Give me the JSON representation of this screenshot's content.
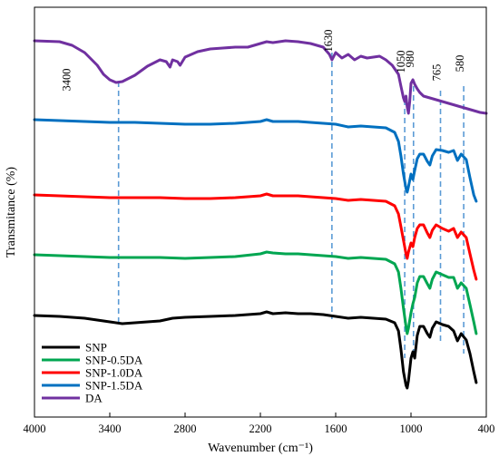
{
  "chart_data": {
    "type": "line",
    "title": "",
    "xlabel": "Wavenumber (cm⁻¹)",
    "ylabel": "Transmitance (%)",
    "xlim": [
      4000,
      400
    ],
    "x_reversed": true,
    "y_ticks_shown": false,
    "grid": false,
    "legend_position": "bottom-left",
    "x_ticks": [
      {
        "value": 4000,
        "label": "4000"
      },
      {
        "value": 3400,
        "label": "3400"
      },
      {
        "value": 2800,
        "label": "2800"
      },
      {
        "value": 2200,
        "label": "2200"
      },
      {
        "value": 1600,
        "label": "1600"
      },
      {
        "value": 1000,
        "label": "1000"
      },
      {
        "value": 400,
        "label": "400"
      }
    ],
    "annotations": [
      {
        "x": 3330,
        "label": "3400",
        "rotated": true
      },
      {
        "x": 1630,
        "label": "1630",
        "rotated": true
      },
      {
        "x": 1050,
        "label": "1050",
        "rotated": true
      },
      {
        "x": 980,
        "label": "980",
        "rotated": true
      },
      {
        "x": 765,
        "label": "765",
        "rotated": true
      },
      {
        "x": 580,
        "label": "580",
        "rotated": true
      }
    ],
    "annotation_color": "#5b9bd5",
    "series": [
      {
        "name": "SNP",
        "color": "#000000",
        "points": [
          [
            4000,
            348
          ],
          [
            3800,
            349
          ],
          [
            3600,
            351
          ],
          [
            3400,
            355
          ],
          [
            3300,
            357
          ],
          [
            3200,
            356
          ],
          [
            3000,
            354
          ],
          [
            2900,
            351
          ],
          [
            2800,
            350
          ],
          [
            2600,
            349
          ],
          [
            2400,
            348
          ],
          [
            2200,
            346
          ],
          [
            2150,
            344
          ],
          [
            2100,
            346
          ],
          [
            2000,
            345
          ],
          [
            1900,
            346
          ],
          [
            1800,
            346
          ],
          [
            1700,
            347
          ],
          [
            1600,
            349
          ],
          [
            1500,
            351
          ],
          [
            1400,
            350
          ],
          [
            1300,
            351
          ],
          [
            1200,
            352
          ],
          [
            1130,
            356
          ],
          [
            1100,
            365
          ],
          [
            1080,
            385
          ],
          [
            1060,
            410
          ],
          [
            1040,
            425
          ],
          [
            1030,
            428
          ],
          [
            1020,
            420
          ],
          [
            1000,
            395
          ],
          [
            985,
            388
          ],
          [
            970,
            395
          ],
          [
            950,
            370
          ],
          [
            930,
            360
          ],
          [
            900,
            360
          ],
          [
            870,
            368
          ],
          [
            850,
            372
          ],
          [
            830,
            362
          ],
          [
            800,
            355
          ],
          [
            750,
            358
          ],
          [
            700,
            360
          ],
          [
            660,
            365
          ],
          [
            630,
            376
          ],
          [
            600,
            368
          ],
          [
            560,
            375
          ],
          [
            530,
            390
          ],
          [
            500,
            410
          ],
          [
            480,
            422
          ]
        ]
      },
      {
        "name": "SNP-0.5DA",
        "color": "#00a651",
        "points": [
          [
            4000,
            281
          ],
          [
            3800,
            282
          ],
          [
            3600,
            283
          ],
          [
            3400,
            284
          ],
          [
            3200,
            284
          ],
          [
            3000,
            284
          ],
          [
            2800,
            285
          ],
          [
            2600,
            284
          ],
          [
            2400,
            283
          ],
          [
            2200,
            280
          ],
          [
            2150,
            278
          ],
          [
            2100,
            279
          ],
          [
            2000,
            280
          ],
          [
            1900,
            280
          ],
          [
            1800,
            281
          ],
          [
            1700,
            282
          ],
          [
            1600,
            283
          ],
          [
            1500,
            285
          ],
          [
            1400,
            284
          ],
          [
            1300,
            285
          ],
          [
            1200,
            286
          ],
          [
            1130,
            291
          ],
          [
            1100,
            300
          ],
          [
            1080,
            318
          ],
          [
            1060,
            340
          ],
          [
            1040,
            360
          ],
          [
            1030,
            368
          ],
          [
            1020,
            362
          ],
          [
            1000,
            345
          ],
          [
            985,
            335
          ],
          [
            970,
            328
          ],
          [
            950,
            312
          ],
          [
            930,
            305
          ],
          [
            900,
            305
          ],
          [
            870,
            313
          ],
          [
            850,
            318
          ],
          [
            830,
            308
          ],
          [
            800,
            300
          ],
          [
            750,
            303
          ],
          [
            700,
            306
          ],
          [
            660,
            306
          ],
          [
            630,
            318
          ],
          [
            600,
            312
          ],
          [
            560,
            318
          ],
          [
            530,
            336
          ],
          [
            500,
            355
          ],
          [
            480,
            368
          ]
        ]
      },
      {
        "name": "SNP-1.0DA",
        "color": "#ff0000",
        "points": [
          [
            4000,
            215
          ],
          [
            3800,
            216
          ],
          [
            3600,
            217
          ],
          [
            3400,
            218
          ],
          [
            3200,
            218
          ],
          [
            3000,
            218
          ],
          [
            2800,
            219
          ],
          [
            2600,
            219
          ],
          [
            2400,
            218
          ],
          [
            2200,
            216
          ],
          [
            2150,
            214
          ],
          [
            2100,
            216
          ],
          [
            2000,
            216
          ],
          [
            1900,
            216
          ],
          [
            1800,
            217
          ],
          [
            1700,
            218
          ],
          [
            1600,
            219
          ],
          [
            1500,
            221
          ],
          [
            1400,
            220
          ],
          [
            1300,
            221
          ],
          [
            1200,
            222
          ],
          [
            1130,
            227
          ],
          [
            1100,
            236
          ],
          [
            1080,
            250
          ],
          [
            1060,
            265
          ],
          [
            1040,
            280
          ],
          [
            1030,
            285
          ],
          [
            1020,
            278
          ],
          [
            1000,
            268
          ],
          [
            985,
            272
          ],
          [
            970,
            262
          ],
          [
            950,
            252
          ],
          [
            930,
            248
          ],
          [
            900,
            248
          ],
          [
            870,
            257
          ],
          [
            850,
            262
          ],
          [
            830,
            254
          ],
          [
            800,
            248
          ],
          [
            750,
            252
          ],
          [
            700,
            255
          ],
          [
            660,
            252
          ],
          [
            630,
            262
          ],
          [
            600,
            256
          ],
          [
            560,
            262
          ],
          [
            530,
            280
          ],
          [
            500,
            298
          ],
          [
            480,
            308
          ]
        ]
      },
      {
        "name": "SNP-1.5DA",
        "color": "#0070c0",
        "points": [
          [
            4000,
            132
          ],
          [
            3800,
            133
          ],
          [
            3600,
            134
          ],
          [
            3400,
            135
          ],
          [
            3200,
            135
          ],
          [
            3000,
            136
          ],
          [
            2800,
            137
          ],
          [
            2600,
            137
          ],
          [
            2400,
            136
          ],
          [
            2200,
            134
          ],
          [
            2150,
            132
          ],
          [
            2100,
            134
          ],
          [
            2000,
            134
          ],
          [
            1900,
            134
          ],
          [
            1800,
            135
          ],
          [
            1700,
            136
          ],
          [
            1600,
            137
          ],
          [
            1500,
            140
          ],
          [
            1400,
            139
          ],
          [
            1300,
            140
          ],
          [
            1200,
            141
          ],
          [
            1130,
            146
          ],
          [
            1100,
            156
          ],
          [
            1080,
            172
          ],
          [
            1060,
            192
          ],
          [
            1040,
            208
          ],
          [
            1030,
            212
          ],
          [
            1020,
            206
          ],
          [
            1000,
            192
          ],
          [
            985,
            198
          ],
          [
            970,
            188
          ],
          [
            950,
            175
          ],
          [
            930,
            170
          ],
          [
            900,
            170
          ],
          [
            870,
            178
          ],
          [
            850,
            182
          ],
          [
            830,
            172
          ],
          [
            800,
            165
          ],
          [
            750,
            166
          ],
          [
            700,
            168
          ],
          [
            660,
            166
          ],
          [
            630,
            177
          ],
          [
            600,
            170
          ],
          [
            560,
            176
          ],
          [
            530,
            196
          ],
          [
            500,
            215
          ],
          [
            480,
            222
          ]
        ]
      },
      {
        "name": "DA",
        "color": "#7030a0",
        "points": [
          [
            4000,
            45
          ],
          [
            3800,
            46
          ],
          [
            3700,
            50
          ],
          [
            3600,
            58
          ],
          [
            3500,
            72
          ],
          [
            3450,
            82
          ],
          [
            3400,
            88
          ],
          [
            3350,
            91
          ],
          [
            3300,
            90
          ],
          [
            3200,
            83
          ],
          [
            3100,
            73
          ],
          [
            3000,
            66
          ],
          [
            2950,
            68
          ],
          [
            2920,
            74
          ],
          [
            2900,
            66
          ],
          [
            2860,
            68
          ],
          [
            2840,
            72
          ],
          [
            2800,
            63
          ],
          [
            2700,
            57
          ],
          [
            2600,
            54
          ],
          [
            2500,
            53
          ],
          [
            2400,
            52
          ],
          [
            2300,
            52
          ],
          [
            2200,
            48
          ],
          [
            2150,
            46
          ],
          [
            2100,
            47
          ],
          [
            2000,
            45
          ],
          [
            1900,
            46
          ],
          [
            1800,
            48
          ],
          [
            1700,
            52
          ],
          [
            1650,
            60
          ],
          [
            1630,
            66
          ],
          [
            1600,
            58
          ],
          [
            1550,
            64
          ],
          [
            1500,
            60
          ],
          [
            1450,
            66
          ],
          [
            1400,
            62
          ],
          [
            1350,
            64
          ],
          [
            1300,
            63
          ],
          [
            1250,
            62
          ],
          [
            1200,
            66
          ],
          [
            1150,
            72
          ],
          [
            1100,
            82
          ],
          [
            1080,
            95
          ],
          [
            1060,
            108
          ],
          [
            1050,
            112
          ],
          [
            1040,
            106
          ],
          [
            1030,
            118
          ],
          [
            1020,
            125
          ],
          [
            1010,
            112
          ],
          [
            1000,
            92
          ],
          [
            985,
            88
          ],
          [
            970,
            93
          ],
          [
            950,
            98
          ],
          [
            930,
            102
          ],
          [
            900,
            106
          ],
          [
            850,
            108
          ],
          [
            800,
            110
          ],
          [
            750,
            112
          ],
          [
            700,
            114
          ],
          [
            650,
            116
          ],
          [
            600,
            118
          ],
          [
            550,
            120
          ],
          [
            500,
            122
          ],
          [
            450,
            124
          ],
          [
            400,
            125
          ]
        ]
      }
    ]
  }
}
